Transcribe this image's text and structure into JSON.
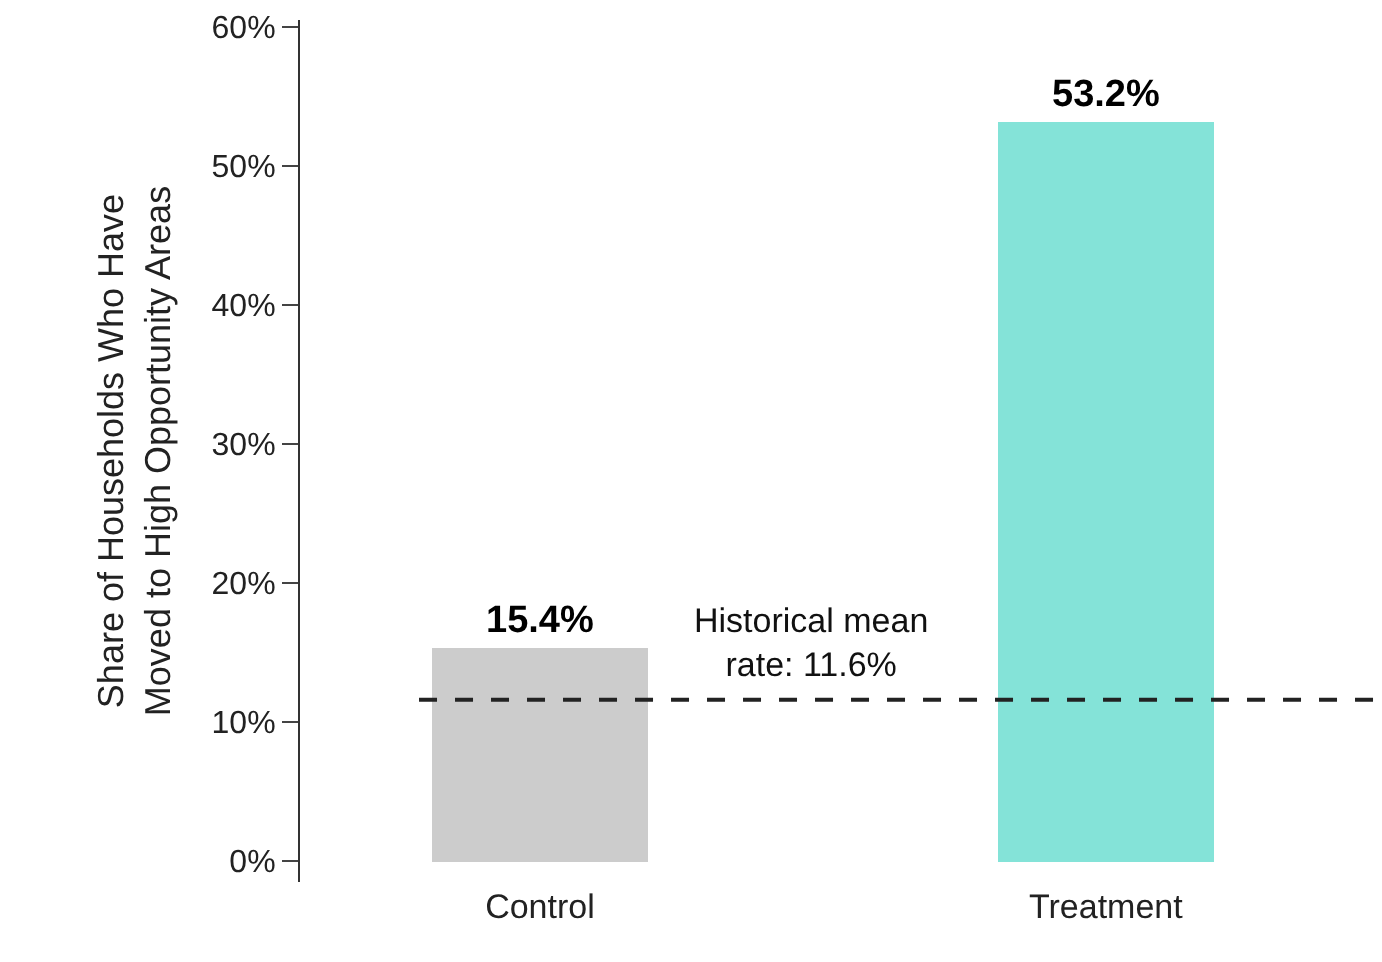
{
  "chart_data": {
    "type": "bar",
    "ylabel": "Share of Households Who Have\nMoved to High Opportunity Areas",
    "categories": [
      "Control",
      "Treatment"
    ],
    "values": [
      15.4,
      53.2
    ],
    "colors": [
      "#cccccc",
      "#84e3d8"
    ],
    "value_labels": [
      "15.4%",
      "53.2%"
    ],
    "ylim": [
      -1.5,
      60.5
    ],
    "yticks": [
      {
        "value": 0,
        "label": "0%"
      },
      {
        "value": 10,
        "label": "10%"
      },
      {
        "value": 20,
        "label": "20%"
      },
      {
        "value": 30,
        "label": "30%"
      },
      {
        "value": 40,
        "label": "40%"
      },
      {
        "value": 50,
        "label": "50%"
      },
      {
        "value": 60,
        "label": "60%"
      }
    ],
    "ref_lines": [
      {
        "axis": "y",
        "value": 11.6,
        "label": "Historical mean\nrate: 11.6%",
        "color": "#222222",
        "line_style": "dashed"
      }
    ],
    "legend": false
  }
}
